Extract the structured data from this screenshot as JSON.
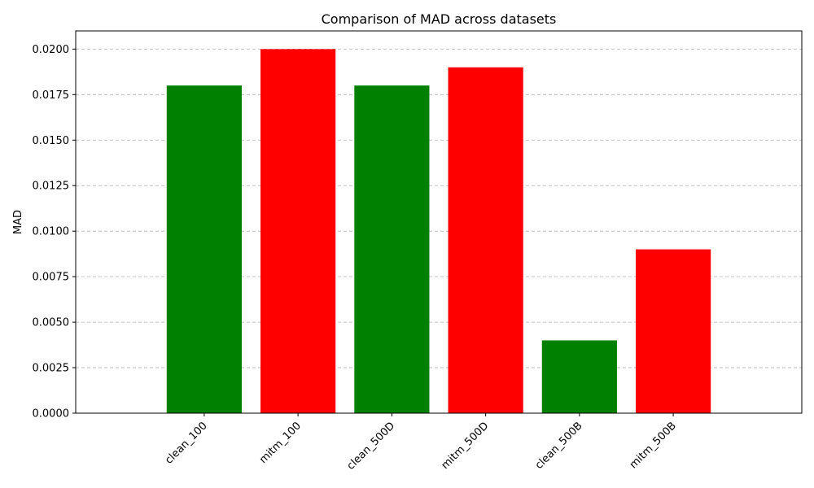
{
  "chart_data": {
    "type": "bar",
    "title": "Comparison of MAD across datasets",
    "xlabel": "",
    "ylabel": "MAD",
    "categories": [
      "clean_100",
      "mitm_100",
      "clean_500D",
      "mitm_500D",
      "clean_500B",
      "mitm_500B"
    ],
    "values": [
      0.018,
      0.02,
      0.018,
      0.019,
      0.004,
      0.009
    ],
    "bar_colors": [
      "#008000",
      "#ff0000",
      "#008000",
      "#ff0000",
      "#008000",
      "#ff0000"
    ],
    "ylim": [
      0,
      0.021
    ],
    "yticks": [
      0.0,
      0.0025,
      0.005,
      0.0075,
      0.01,
      0.0125,
      0.015,
      0.0175,
      0.02
    ],
    "ytick_labels": [
      "0.0000",
      "0.0025",
      "0.0050",
      "0.0075",
      "0.0100",
      "0.0125",
      "0.0150",
      "0.0175",
      "0.0200"
    ],
    "grid": "y",
    "grid_style": "dashed",
    "xtick_rotation": 45
  }
}
